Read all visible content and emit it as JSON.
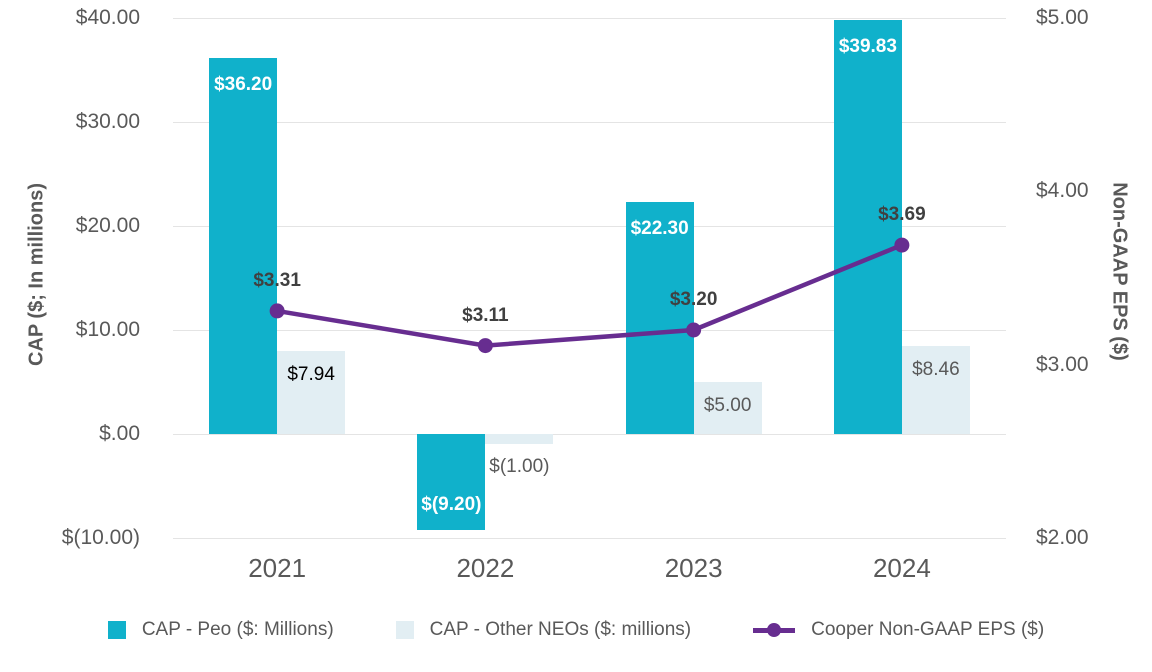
{
  "colors": {
    "teal": "#10b1cb",
    "light_blue": "#e2eef3",
    "purple": "#672d90",
    "grid": "#e4e4e4",
    "tick_text": "#595959",
    "line_label_text": "#404040",
    "bar_label_white": "#ffffff"
  },
  "chart_data": {
    "type": "bar",
    "subtype": "combo-bar-line",
    "categories": [
      "2021",
      "2022",
      "2023",
      "2024"
    ],
    "series": [
      {
        "name": "CAP - Peo ($: Millions)",
        "type": "bar",
        "axis": "left",
        "color": "#10b1cb",
        "values": [
          36.2,
          -9.2,
          22.3,
          39.83
        ],
        "labels": [
          "$36.20",
          "$(9.20)",
          "$22.30",
          "$39.83"
        ],
        "label_colors": [
          "#ffffff",
          "#ffffff",
          "#ffffff",
          "#ffffff"
        ]
      },
      {
        "name": "CAP - Other NEOs ($: millions)",
        "type": "bar",
        "axis": "left",
        "color": "#e2eef3",
        "values": [
          7.94,
          -1.0,
          5.0,
          8.46
        ],
        "labels": [
          "$7.94",
          "$(1.00)",
          "$5.00",
          "$8.46"
        ],
        "label_colors": [
          "#000000",
          "#595959",
          "#595959",
          "#595959"
        ]
      },
      {
        "name": "Cooper Non-GAAP EPS ($)",
        "type": "line",
        "axis": "right",
        "color": "#672d90",
        "values": [
          3.31,
          3.11,
          3.2,
          3.69
        ],
        "labels": [
          "$3.31",
          "$3.11",
          "$3.20",
          "$3.69"
        ],
        "label_colors": [
          "#404040",
          "#404040",
          "#404040",
          "#404040"
        ]
      }
    ],
    "left_axis": {
      "title": "CAP ($; In millions)",
      "min": -10,
      "max": 40,
      "ticks": [
        40,
        30,
        20,
        10,
        0,
        -10
      ],
      "tick_labels": [
        "$40.00",
        "$30.00",
        "$20.00",
        "$10.00",
        "$.00",
        "$(10.00)"
      ]
    },
    "right_axis": {
      "title": "Non-GAAP EPS ($)",
      "min": 2,
      "max": 5,
      "ticks": [
        5,
        4,
        3,
        2
      ],
      "tick_labels": [
        "$5.00",
        "$4.00",
        "$3.00",
        "$2.00"
      ]
    },
    "grid": "horizontal",
    "legend_position": "bottom",
    "legend": [
      "CAP - Peo ($: Millions)",
      "CAP - Other NEOs ($: millions)",
      "Cooper Non-GAAP EPS ($)"
    ]
  }
}
